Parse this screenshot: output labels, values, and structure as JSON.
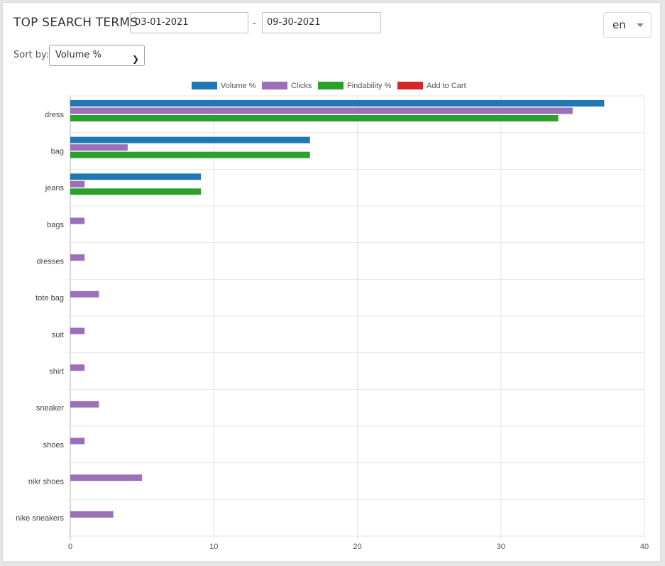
{
  "header": {
    "title": "TOP SEARCH TERMS",
    "date_from": "03-01-2021",
    "date_separator": "-",
    "date_to": "09-30-2021",
    "language": "en"
  },
  "sort": {
    "label": "Sort by:",
    "selected": "Volume %"
  },
  "colors": {
    "volume": "#1f77b4",
    "clicks": "#9b70b8",
    "findability": "#2ca02c",
    "add_to_cart": "#d62728"
  },
  "chart_data": {
    "type": "bar",
    "orientation": "horizontal",
    "legend_position": "top-center",
    "grid": true,
    "xlim": [
      0,
      40
    ],
    "x_ticks": [
      0,
      10,
      20,
      30,
      40
    ],
    "categories": [
      "dress",
      "bag",
      "jeans",
      "bags",
      "dresses",
      "tote bag",
      "suit",
      "shirt",
      "sneaker",
      "shoes",
      "nikr shoes",
      "nike sneakers"
    ],
    "series": [
      {
        "name": "Volume %",
        "color": "#1f77b4",
        "values": [
          37.2,
          16.7,
          9.1,
          0,
          0,
          0,
          0,
          0,
          0,
          0,
          0,
          0
        ]
      },
      {
        "name": "Clicks",
        "color": "#9b70b8",
        "values": [
          35,
          4,
          1,
          1,
          1,
          2,
          1,
          1,
          2,
          1,
          5,
          3
        ]
      },
      {
        "name": "Findability %",
        "color": "#2ca02c",
        "values": [
          34,
          16.7,
          9.1,
          0,
          0,
          0,
          0,
          0,
          0,
          0,
          0,
          0
        ]
      },
      {
        "name": "Add to Cart",
        "color": "#d62728",
        "values": [
          0,
          0,
          0,
          0,
          0,
          0,
          0,
          0,
          0,
          0,
          0,
          0
        ]
      }
    ]
  }
}
